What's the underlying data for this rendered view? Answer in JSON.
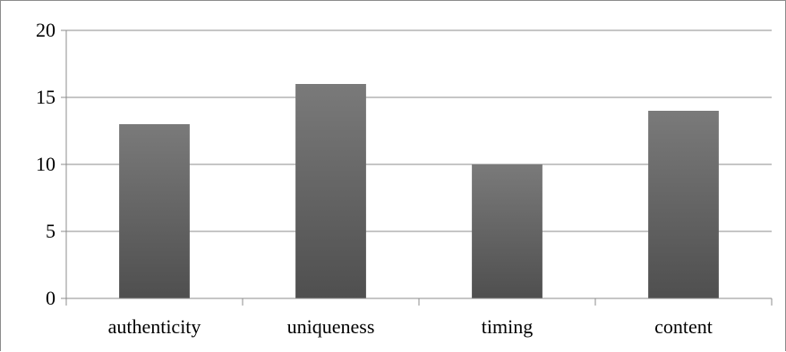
{
  "chart_data": {
    "type": "bar",
    "categories": [
      "authenticity",
      "uniqueness",
      "timing",
      "content"
    ],
    "values": [
      13,
      16,
      10,
      14
    ],
    "title": "",
    "xlabel": "",
    "ylabel": "",
    "ylim": [
      0,
      20
    ],
    "yticks": [
      0,
      5,
      10,
      15,
      20
    ],
    "ytick_labels": [
      "0",
      "5",
      "10",
      "15",
      "20"
    ],
    "grid": true,
    "legend": "none",
    "colors": {
      "bar_top": "#7a7a7a",
      "bar_bottom": "#4f4f4f",
      "grid": "#8c8c8c",
      "axis": "#8c8c8c"
    }
  }
}
